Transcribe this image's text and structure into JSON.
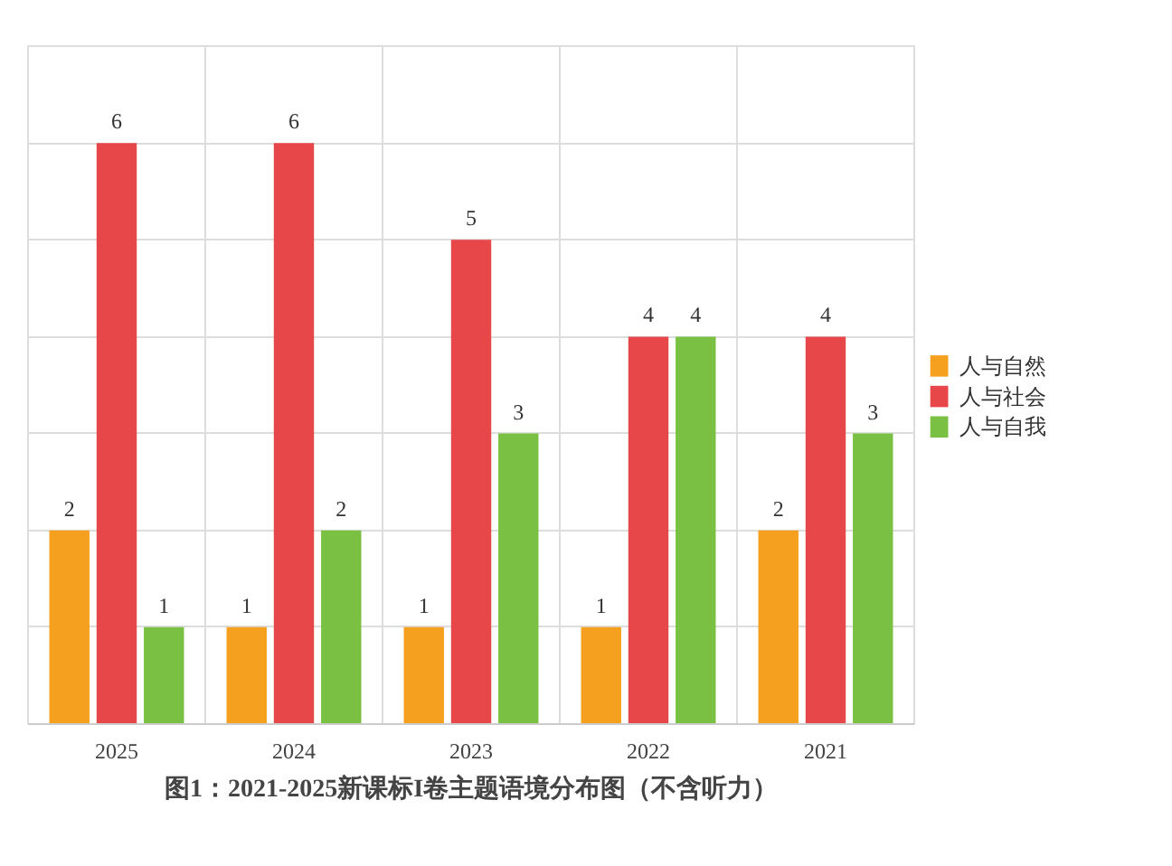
{
  "chart_data": {
    "type": "bar",
    "title": "图1：2021-2025新课标I卷主题语境分布图（不含听力）",
    "categories": [
      "2025",
      "2024",
      "2023",
      "2022",
      "2021"
    ],
    "series": [
      {
        "name": "人与自然",
        "color": "#f5a01e",
        "values": [
          2,
          1,
          1,
          1,
          2
        ]
      },
      {
        "name": "人与社会",
        "color": "#e8474a",
        "values": [
          6,
          6,
          5,
          4,
          4
        ]
      },
      {
        "name": "人与自我",
        "color": "#7ac143",
        "values": [
          1,
          2,
          3,
          4,
          3
        ]
      }
    ],
    "ylim": [
      0,
      7
    ],
    "yticks": [
      {
        "value": 0,
        "label": null
      },
      {
        "value": 1,
        "label": null
      },
      {
        "value": 2,
        "label": null
      },
      {
        "value": 3,
        "label": null
      },
      {
        "value": 4,
        "label": null
      },
      {
        "value": 5,
        "label": null
      },
      {
        "value": 6,
        "label": null
      },
      {
        "value": 7,
        "label": null
      }
    ],
    "tick_labels": "x",
    "grid": true,
    "legend": "right",
    "data_labels": true
  }
}
